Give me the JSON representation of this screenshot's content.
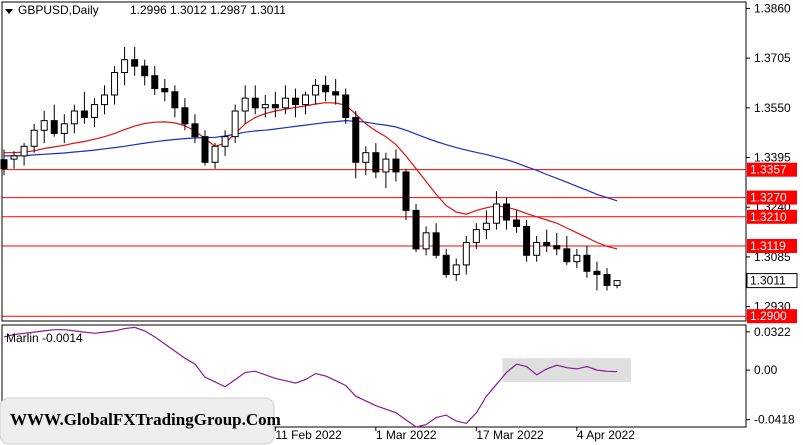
{
  "chart_data": [
    {
      "type": "candlestick",
      "symbol_label": "GBPUSD,Daily",
      "ohlc_label": "1.2996 1.3012 1.2987 1.3011",
      "y_ticks": [
        "1.3860",
        "1.3705",
        "1.3550",
        "1.3395",
        "1.3240",
        "1.3085",
        "1.2930"
      ],
      "ylim": [
        1.2885,
        1.388
      ],
      "x_tick_labels": [
        "11 Feb 2022",
        "1 Mar 2022",
        "17 Mar 2022",
        "4 Apr 2022"
      ],
      "x_tick_index": [
        27,
        37,
        47,
        57
      ],
      "horizontal_levels": [
        {
          "value": 1.3357,
          "label": "1.3357"
        },
        {
          "value": 1.327,
          "label": "1.3270"
        },
        {
          "value": 1.321,
          "label": "1.3210"
        },
        {
          "value": 1.3119,
          "label": "1.3119"
        },
        {
          "value": 1.29,
          "label": "1.2900"
        }
      ],
      "current_price": "1.3011",
      "candles": [
        [
          1.3388,
          1.342,
          1.334,
          1.336
        ],
        [
          1.339,
          1.3415,
          1.336,
          1.34
        ],
        [
          1.34,
          1.344,
          1.337,
          1.343
        ],
        [
          1.343,
          1.35,
          1.341,
          1.348
        ],
        [
          1.348,
          1.354,
          1.344,
          1.351
        ],
        [
          1.351,
          1.356,
          1.346,
          1.347
        ],
        [
          1.347,
          1.353,
          1.344,
          1.35
        ],
        [
          1.35,
          1.356,
          1.347,
          1.354
        ],
        [
          1.354,
          1.36,
          1.35,
          1.352
        ],
        [
          1.352,
          1.358,
          1.349,
          1.356
        ],
        [
          1.356,
          1.362,
          1.353,
          1.359
        ],
        [
          1.359,
          1.368,
          1.356,
          1.366
        ],
        [
          1.366,
          1.374,
          1.362,
          1.37
        ],
        [
          1.37,
          1.374,
          1.365,
          1.368
        ],
        [
          1.368,
          1.37,
          1.362,
          1.365
        ],
        [
          1.365,
          1.368,
          1.359,
          1.361
        ],
        [
          1.361,
          1.364,
          1.357,
          1.36
        ],
        [
          1.36,
          1.362,
          1.352,
          1.355
        ],
        [
          1.355,
          1.358,
          1.348,
          1.35
        ],
        [
          1.35,
          1.353,
          1.344,
          1.346
        ],
        [
          1.346,
          1.348,
          1.337,
          1.338
        ],
        [
          1.338,
          1.344,
          1.336,
          1.343
        ],
        [
          1.343,
          1.348,
          1.34,
          1.346
        ],
        [
          1.346,
          1.356,
          1.344,
          1.354
        ],
        [
          1.354,
          1.362,
          1.35,
          1.358
        ],
        [
          1.358,
          1.362,
          1.353,
          1.355
        ],
        [
          1.355,
          1.359,
          1.352,
          1.356
        ],
        [
          1.356,
          1.36,
          1.352,
          1.355
        ],
        [
          1.355,
          1.362,
          1.353,
          1.358
        ],
        [
          1.358,
          1.361,
          1.352,
          1.356
        ],
        [
          1.356,
          1.36,
          1.353,
          1.359
        ],
        [
          1.359,
          1.364,
          1.356,
          1.362
        ],
        [
          1.362,
          1.365,
          1.357,
          1.36
        ],
        [
          1.36,
          1.364,
          1.356,
          1.359
        ],
        [
          1.359,
          1.361,
          1.35,
          1.352
        ],
        [
          1.352,
          1.354,
          1.333,
          1.338
        ],
        [
          1.338,
          1.343,
          1.334,
          1.341
        ],
        [
          1.341,
          1.344,
          1.333,
          1.335
        ],
        [
          1.335,
          1.341,
          1.33,
          1.339
        ],
        [
          1.339,
          1.342,
          1.332,
          1.335
        ],
        [
          1.335,
          1.336,
          1.32,
          1.323
        ],
        [
          1.323,
          1.325,
          1.31,
          1.311
        ],
        [
          1.311,
          1.318,
          1.309,
          1.316
        ],
        [
          1.316,
          1.319,
          1.308,
          1.309
        ],
        [
          1.309,
          1.311,
          1.302,
          1.303
        ],
        [
          1.303,
          1.308,
          1.301,
          1.306
        ],
        [
          1.306,
          1.315,
          1.303,
          1.313
        ],
        [
          1.313,
          1.319,
          1.311,
          1.317
        ],
        [
          1.317,
          1.323,
          1.314,
          1.319
        ],
        [
          1.319,
          1.329,
          1.317,
          1.325
        ],
        [
          1.325,
          1.327,
          1.317,
          1.32
        ],
        [
          1.32,
          1.323,
          1.316,
          1.318
        ],
        [
          1.318,
          1.32,
          1.307,
          1.309
        ],
        [
          1.309,
          1.315,
          1.307,
          1.313
        ],
        [
          1.313,
          1.317,
          1.31,
          1.312
        ],
        [
          1.312,
          1.316,
          1.309,
          1.311
        ],
        [
          1.311,
          1.315,
          1.306,
          1.307
        ],
        [
          1.307,
          1.311,
          1.305,
          1.309
        ],
        [
          1.309,
          1.312,
          1.302,
          1.304
        ],
        [
          1.304,
          1.307,
          1.298,
          1.303
        ],
        [
          1.303,
          1.305,
          1.298,
          1.2996
        ],
        [
          1.2996,
          1.3012,
          1.2987,
          1.3011
        ]
      ],
      "ema_fast": [
        1.341,
        1.341,
        1.3412,
        1.3416,
        1.3423,
        1.3428,
        1.3433,
        1.344,
        1.3445,
        1.3452,
        1.346,
        1.347,
        1.3482,
        1.3493,
        1.3501,
        1.3505,
        1.3506,
        1.3503,
        1.3494,
        1.3478,
        1.3454,
        1.343,
        1.344,
        1.347,
        1.35,
        1.352,
        1.3532,
        1.354,
        1.3546,
        1.3551,
        1.3556,
        1.3562,
        1.3566,
        1.3565,
        1.3558,
        1.353,
        1.35,
        1.3478,
        1.346,
        1.3435,
        1.34,
        1.336,
        1.332,
        1.328,
        1.3245,
        1.3225,
        1.3218,
        1.323,
        1.3238,
        1.3245,
        1.324,
        1.3232,
        1.322,
        1.321,
        1.32,
        1.319,
        1.3175,
        1.316,
        1.3145,
        1.313,
        1.3118,
        1.311
      ],
      "ema_slow": [
        1.34,
        1.34,
        1.3401,
        1.3403,
        1.3405,
        1.3407,
        1.3409,
        1.3412,
        1.3415,
        1.3418,
        1.3422,
        1.3426,
        1.343,
        1.3435,
        1.344,
        1.3444,
        1.3448,
        1.3451,
        1.3454,
        1.3456,
        1.3457,
        1.3458,
        1.3462,
        1.3468,
        1.3474,
        1.3478,
        1.348,
        1.3484,
        1.3488,
        1.3492,
        1.3496,
        1.35,
        1.3504,
        1.3507,
        1.351,
        1.3508,
        1.3505,
        1.35,
        1.3496,
        1.349,
        1.348,
        1.3468,
        1.3456,
        1.3445,
        1.3435,
        1.3426,
        1.3418,
        1.3411,
        1.3404,
        1.3396,
        1.3388,
        1.3378,
        1.3366,
        1.3355,
        1.3342,
        1.333,
        1.3318,
        1.3305,
        1.3293,
        1.328,
        1.327,
        1.326
      ],
      "ema_fast_visible_from": 0,
      "ema_slow_visible_to": 62
    },
    {
      "type": "line",
      "indicator_label": "Marlin -0.0014",
      "y_ticks": [
        "0.0322",
        "0.00",
        "-0.0418"
      ],
      "ylim": [
        -0.048,
        0.038
      ],
      "values": [
        0.028,
        0.03,
        0.031,
        0.032,
        0.033,
        0.034,
        0.034,
        0.033,
        0.032,
        0.031,
        0.032,
        0.033,
        0.035,
        0.036,
        0.033,
        0.028,
        0.022,
        0.016,
        0.01,
        0.005,
        -0.006,
        -0.01,
        -0.014,
        -0.008,
        -0.002,
        -0.001,
        -0.004,
        -0.007,
        -0.009,
        -0.011,
        -0.008,
        -0.003,
        -0.005,
        -0.009,
        -0.013,
        -0.022,
        -0.026,
        -0.03,
        -0.033,
        -0.036,
        -0.042,
        -0.048,
        -0.046,
        -0.04,
        -0.038,
        -0.043,
        -0.045,
        -0.036,
        -0.022,
        -0.012,
        -0.002,
        0.005,
        0.003,
        -0.004,
        0.001,
        0.004,
        0.002,
        0.001,
        0.003,
        0.0,
        -0.001,
        -0.0014
      ],
      "highlight_range_index": [
        50,
        61
      ]
    }
  ],
  "watermark": "WWW.GlobalFXTradingGroup.Com",
  "colors": {
    "candle_up": "#ffffff",
    "candle_down": "#000000",
    "ema_fast": "#e01010",
    "ema_slow": "#1a2ec8",
    "level_line": "#ff0000",
    "level_tag": "#ff0000",
    "marlin_line": "#8a1a9a",
    "highlight": "#c8c8c8"
  }
}
